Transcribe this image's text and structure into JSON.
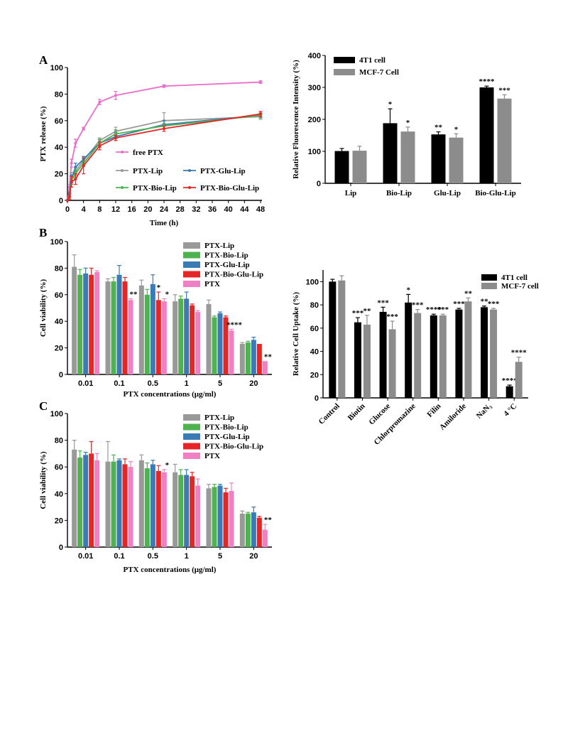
{
  "panel_letters": {
    "a": "A",
    "b": "B",
    "c": "C"
  },
  "chart_data": [
    {
      "id": "release",
      "type": "line",
      "xlabel": "Time (h)",
      "ylabel": "PTX release (%)",
      "xlim": [
        0,
        48
      ],
      "ylim": [
        0,
        100
      ],
      "xticks": [
        0,
        4,
        8,
        12,
        16,
        20,
        24,
        28,
        32,
        36,
        40,
        44,
        48
      ],
      "yticks": [
        0,
        20,
        40,
        60,
        80,
        100
      ],
      "legend_position": "center",
      "series": [
        {
          "name": "free PTX",
          "color": "#ea6fcb",
          "x": [
            0,
            0.5,
            1,
            2,
            4,
            8,
            12,
            24,
            48
          ],
          "y": [
            0,
            10,
            28,
            43,
            54,
            74,
            79,
            86,
            89
          ],
          "err": [
            0,
            2,
            3,
            3,
            1,
            2,
            3,
            1,
            1
          ]
        },
        {
          "name": "PTX-Lip",
          "color": "#999999",
          "x": [
            0,
            0.5,
            1,
            2,
            4,
            8,
            12,
            24,
            48
          ],
          "y": [
            0,
            5,
            18,
            22,
            30,
            45,
            52,
            60,
            63
          ],
          "err": [
            0,
            2,
            3,
            3,
            3,
            2,
            3,
            6,
            2
          ]
        },
        {
          "name": "PTX-Glu-Lip",
          "color": "#3a7bb5",
          "x": [
            0,
            0.5,
            1,
            2,
            4,
            8,
            12,
            24,
            48
          ],
          "y": [
            0,
            4,
            16,
            25,
            31,
            43,
            48,
            57,
            64
          ],
          "err": [
            0,
            2,
            3,
            3,
            2,
            3,
            3,
            3,
            2
          ]
        },
        {
          "name": "PTX-Bio-Lip",
          "color": "#4eb34e",
          "x": [
            0,
            0.5,
            1,
            2,
            4,
            8,
            12,
            24,
            48
          ],
          "y": [
            0,
            3,
            15,
            20,
            28,
            43,
            50,
            56,
            64
          ],
          "err": [
            0,
            2,
            3,
            3,
            2,
            3,
            3,
            2,
            2
          ]
        },
        {
          "name": "PTX-Bio-Glu-Lip",
          "color": "#e52626",
          "x": [
            0,
            0.5,
            1,
            2,
            4,
            8,
            12,
            24,
            48
          ],
          "y": [
            0,
            3,
            14,
            16,
            26,
            41,
            47,
            54,
            65
          ],
          "err": [
            0,
            2,
            4,
            4,
            6,
            3,
            2,
            2,
            2
          ]
        }
      ]
    },
    {
      "id": "fluor",
      "type": "bar",
      "ylabel": "Relative Fluorescence Intensity (%)",
      "ylim": [
        0,
        400
      ],
      "yticks": [
        0,
        100,
        200,
        300,
        400
      ],
      "legend_position": "top-left",
      "categories": [
        "Lip",
        "Bio-Lip",
        "Glu-Lip",
        "Bio-Glu-Lip"
      ],
      "series": [
        {
          "name": "4T1 cell",
          "color": "#000000",
          "values": [
            101,
            188,
            153,
            300
          ],
          "err": [
            8,
            45,
            8,
            4
          ],
          "stars": [
            "",
            "*",
            "**",
            "****"
          ]
        },
        {
          "name": "MCF-7 Cell",
          "color": "#8c8c8c",
          "values": [
            102,
            162,
            143,
            265
          ],
          "err": [
            14,
            14,
            12,
            12
          ],
          "stars": [
            "",
            "*",
            "*",
            "***"
          ]
        }
      ]
    },
    {
      "id": "viabilityB",
      "type": "bar",
      "xlabel": "PTX concentrations (μg/ml)",
      "ylabel": "Cell viability (%)",
      "ylim": [
        0,
        100
      ],
      "yticks": [
        0,
        20,
        40,
        60,
        80,
        100
      ],
      "legend_position": "top-right",
      "categories": [
        "0.01",
        "0.1",
        "0.5",
        "1",
        "5",
        "20"
      ],
      "series": [
        {
          "name": "PTX-Lip",
          "color": "#999999",
          "values": [
            81,
            70,
            67,
            55,
            53,
            23
          ],
          "err": [
            9,
            2,
            4,
            5,
            3,
            1
          ]
        },
        {
          "name": "PTX-Bio-Lip",
          "color": "#4eb34e",
          "values": [
            75,
            70,
            60,
            57,
            43,
            24
          ],
          "err": [
            4,
            3,
            4,
            2,
            1,
            1
          ]
        },
        {
          "name": "PTX-Glu-Lip",
          "color": "#3a7bb5",
          "values": [
            76,
            75,
            68,
            57,
            46,
            26
          ],
          "err": [
            4,
            7,
            7,
            5,
            1,
            2
          ]
        },
        {
          "name": "PTX-Bio-Glu-Lip",
          "color": "#e52626",
          "values": [
            75,
            70,
            56,
            52,
            43,
            23
          ],
          "err": [
            5,
            3,
            6,
            1,
            1,
            0
          ]
        },
        {
          "name": "PTX",
          "color": "#f07fc3",
          "values": [
            77,
            56,
            55,
            47,
            33,
            10
          ],
          "err": [
            1,
            1,
            2,
            1,
            1,
            0
          ],
          "stars": [
            "",
            "**",
            "*",
            "",
            "****",
            "**"
          ]
        }
      ],
      "extra_stars": [
        {
          "category": 2,
          "series": 3,
          "text": "*"
        }
      ]
    },
    {
      "id": "uptake",
      "type": "bar",
      "ylabel": "Relative Cell Uptake (%)",
      "ylim": [
        0,
        110
      ],
      "yticks": [
        0,
        20,
        40,
        60,
        80,
        100
      ],
      "legend_position": "top-right",
      "categories": [
        "Control",
        "Biotin",
        "Glucose",
        "Chlorpromazine",
        "Filin",
        "Amiloride",
        "NaN₃",
        "4 °C"
      ],
      "series": [
        {
          "name": "4T1 cell",
          "color": "#000000",
          "values": [
            100,
            65,
            74,
            82,
            71,
            76,
            78,
            10
          ],
          "err": [
            2,
            4,
            4,
            7,
            1,
            1,
            1,
            1
          ],
          "stars": [
            "",
            "***",
            "***",
            "*",
            "****",
            "***",
            "**",
            "****"
          ]
        },
        {
          "name": "MCF-7 cell",
          "color": "#8c8c8c",
          "values": [
            101,
            63,
            59,
            73,
            71,
            83,
            76,
            31
          ],
          "err": [
            4,
            8,
            7,
            3,
            1,
            3,
            1,
            4
          ],
          "stars": [
            "",
            "**",
            "***",
            "***",
            "***",
            "**",
            "***",
            "****"
          ]
        }
      ]
    },
    {
      "id": "viabilityC",
      "type": "bar",
      "xlabel": "PTX concentrations (μg/ml)",
      "ylabel": "Cell viability (%)",
      "ylim": [
        0,
        100
      ],
      "yticks": [
        0,
        20,
        40,
        60,
        80,
        100
      ],
      "legend_position": "top-right",
      "categories": [
        "0.01",
        "0.1",
        "0.5",
        "1",
        "5",
        "20"
      ],
      "series": [
        {
          "name": "PTX-Lip",
          "color": "#999999",
          "values": [
            73,
            64,
            65,
            56,
            44,
            25
          ],
          "err": [
            7,
            15,
            4,
            6,
            3,
            2
          ]
        },
        {
          "name": "PTX-Bio-Lip",
          "color": "#4eb34e",
          "values": [
            67,
            64,
            59,
            54,
            45,
            25
          ],
          "err": [
            5,
            5,
            4,
            4,
            2,
            1
          ]
        },
        {
          "name": "PTX-Glu-Lip",
          "color": "#3a7bb5",
          "values": [
            69,
            65,
            62,
            54,
            46,
            26
          ],
          "err": [
            2,
            1,
            3,
            4,
            1,
            4
          ]
        },
        {
          "name": "PTX-Bio-Glu-Lip",
          "color": "#e52626",
          "values": [
            70,
            62,
            57,
            53,
            41,
            22
          ],
          "err": [
            9,
            4,
            4,
            3,
            3,
            1
          ]
        },
        {
          "name": "PTX",
          "color": "#f07fc3",
          "values": [
            65,
            60,
            56,
            46,
            42,
            13
          ],
          "err": [
            5,
            4,
            2,
            5,
            6,
            4
          ],
          "stars": [
            "",
            "",
            "*",
            "",
            "",
            "**"
          ]
        }
      ]
    }
  ]
}
